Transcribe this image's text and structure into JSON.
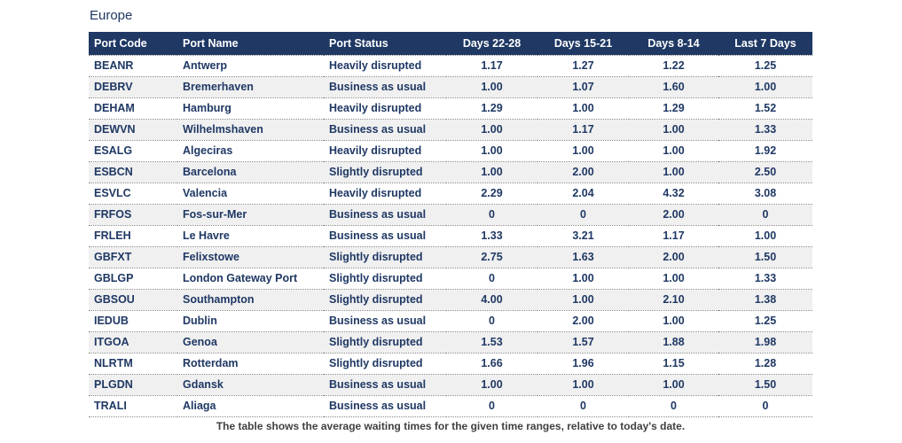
{
  "title": "Europe",
  "footnote": "The table shows the average waiting times for the given time ranges, relative to today's date.",
  "chart_data": {
    "type": "table",
    "title": "Europe",
    "columns": [
      "Port Code",
      "Port Name",
      "Port Status",
      "Days 22-28",
      "Days 15-21",
      "Days 8-14",
      "Last 7 Days"
    ],
    "rows": [
      [
        "BEANR",
        "Antwerp",
        "Heavily disrupted",
        "1.17",
        "1.27",
        "1.22",
        "1.25"
      ],
      [
        "DEBRV",
        "Bremerhaven",
        "Business as usual",
        "1.00",
        "1.07",
        "1.60",
        "1.00"
      ],
      [
        "DEHAM",
        "Hamburg",
        "Heavily disrupted",
        "1.29",
        "1.00",
        "1.29",
        "1.52"
      ],
      [
        "DEWVN",
        "Wilhelmshaven",
        "Business as usual",
        "1.00",
        "1.17",
        "1.00",
        "1.33"
      ],
      [
        "ESALG",
        "Algeciras",
        "Heavily disrupted",
        "1.00",
        "1.00",
        "1.00",
        "1.92"
      ],
      [
        "ESBCN",
        "Barcelona",
        "Slightly disrupted",
        "1.00",
        "2.00",
        "1.00",
        "2.50"
      ],
      [
        "ESVLC",
        "Valencia",
        "Heavily disrupted",
        "2.29",
        "2.04",
        "4.32",
        "3.08"
      ],
      [
        "FRFOS",
        "Fos-sur-Mer",
        "Business as usual",
        "0",
        "0",
        "2.00",
        "0"
      ],
      [
        "FRLEH",
        "Le Havre",
        "Business as usual",
        "1.33",
        "3.21",
        "1.17",
        "1.00"
      ],
      [
        "GBFXT",
        "Felixstowe",
        "Slightly disrupted",
        "2.75",
        "1.63",
        "2.00",
        "1.50"
      ],
      [
        "GBLGP",
        "London Gateway Port",
        "Slightly disrupted",
        "0",
        "1.00",
        "1.00",
        "1.33"
      ],
      [
        "GBSOU",
        "Southampton",
        "Slightly disrupted",
        "4.00",
        "1.00",
        "2.10",
        "1.38"
      ],
      [
        "IEDUB",
        "Dublin",
        "Business as usual",
        "0",
        "2.00",
        "1.00",
        "1.25"
      ],
      [
        "ITGOA",
        "Genoa",
        "Slightly disrupted",
        "1.53",
        "1.57",
        "1.88",
        "1.98"
      ],
      [
        "NLRTM",
        "Rotterdam",
        "Slightly disrupted",
        "1.66",
        "1.96",
        "1.15",
        "1.28"
      ],
      [
        "PLGDN",
        "Gdansk",
        "Business as usual",
        "1.00",
        "1.00",
        "1.00",
        "1.50"
      ],
      [
        "TRALI",
        "Aliaga",
        "Business as usual",
        "0",
        "0",
        "0",
        "0"
      ]
    ]
  },
  "colors": {
    "header_bg": "#1F3864",
    "header_text": "#FFFFFF",
    "body_text": "#1F3864",
    "row_stripe": "#F0F0F0",
    "footnote_text": "#404040",
    "row_divider_dotted": "#8A8A8A",
    "bottom_rule": "#C9C9C9"
  }
}
